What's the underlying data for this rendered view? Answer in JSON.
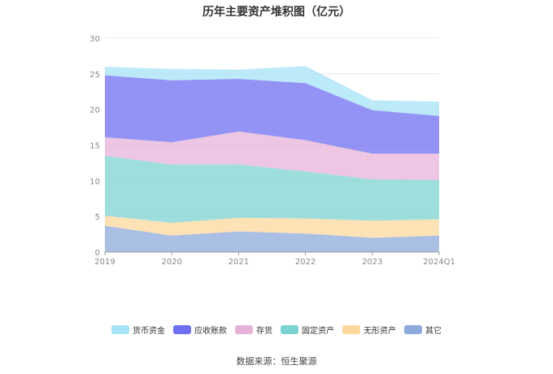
{
  "title": "历年主要资产堆积图（亿元）",
  "source": "数据来源：恒生聚源",
  "chart_data": {
    "type": "area",
    "stacked": true,
    "categories": [
      "2019",
      "2020",
      "2021",
      "2022",
      "2023",
      "2024Q1"
    ],
    "ylim": [
      0,
      30
    ],
    "yticks": [
      0,
      5,
      10,
      15,
      20,
      25,
      30
    ],
    "grid": true,
    "legend_position": "bottom",
    "series": [
      {
        "name": "其它",
        "color": "#8eaadb",
        "values": [
          3.7,
          2.3,
          2.9,
          2.6,
          2.0,
          2.3
        ]
      },
      {
        "name": "无形资产",
        "color": "#fcd89c",
        "values": [
          1.4,
          1.8,
          1.9,
          2.1,
          2.4,
          2.3
        ]
      },
      {
        "name": "固定资产",
        "color": "#7dd3d1",
        "values": [
          8.4,
          8.2,
          7.5,
          6.6,
          5.8,
          5.5
        ]
      },
      {
        "name": "存货",
        "color": "#e6b3d8",
        "values": [
          2.6,
          3.1,
          4.6,
          4.4,
          3.6,
          3.7
        ]
      },
      {
        "name": "应收账款",
        "color": "#6f6ff2",
        "values": [
          8.7,
          8.7,
          7.4,
          8.0,
          6.1,
          5.3
        ]
      },
      {
        "name": "货币资金",
        "color": "#a6e3f7",
        "values": [
          1.2,
          1.6,
          1.3,
          2.4,
          1.4,
          2.0
        ]
      }
    ]
  }
}
